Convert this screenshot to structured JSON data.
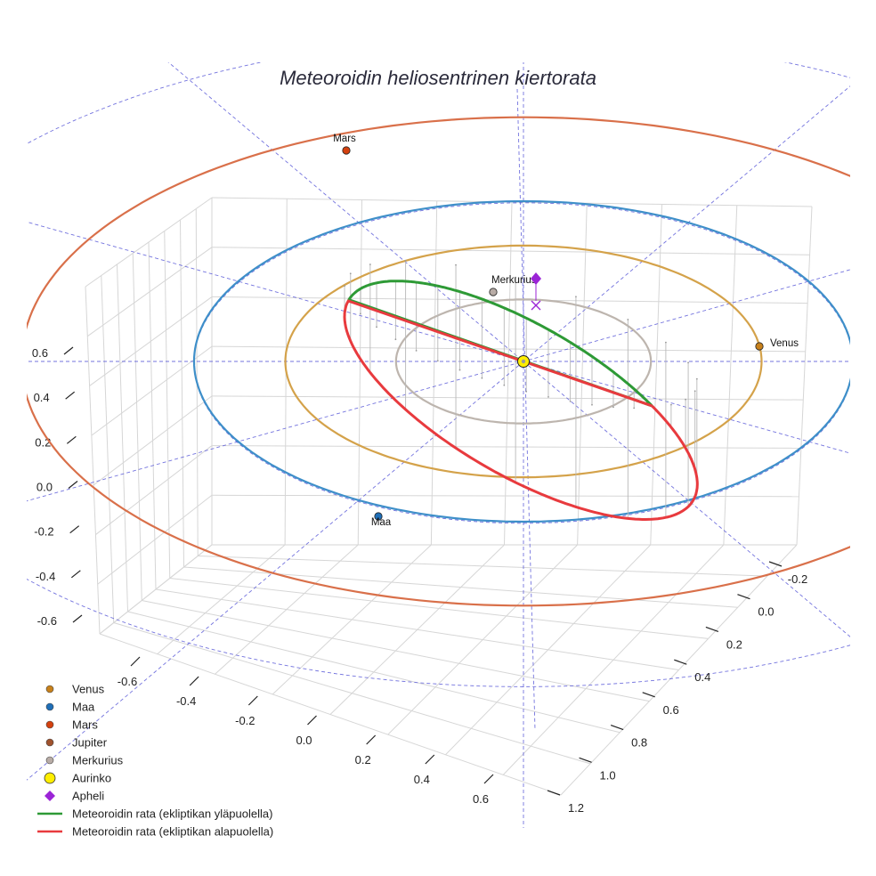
{
  "chart_data": {
    "type": "scatter",
    "projection": "3d",
    "title": "Meteoroidin heliosentrinen kiertorata",
    "axes": {
      "x": {
        "range": [
          -0.8,
          0.7
        ],
        "ticks": [
          "-0.6",
          "-0.4",
          "-0.2",
          "0.0",
          "0.2",
          "0.4",
          "0.6"
        ]
      },
      "y": {
        "range": [
          -0.3,
          1.3
        ],
        "ticks": [
          "-0.2",
          "0.0",
          "0.2",
          "0.4",
          "0.6",
          "0.8",
          "1.0",
          "1.2"
        ]
      },
      "z": {
        "range": [
          -0.7,
          0.7
        ],
        "ticks": [
          "-0.6",
          "-0.4",
          "-0.2",
          "0.0",
          "0.2",
          "0.4",
          "0.6"
        ]
      }
    },
    "grid": true,
    "legend": "bottom-left",
    "planet_orbits": [
      {
        "name": "Merkurius",
        "radius_au": 0.387,
        "color": "#bdb5ae"
      },
      {
        "name": "Venus",
        "radius_au": 0.723,
        "color": "#d4a24a"
      },
      {
        "name": "Maa",
        "radius_au": 1.0,
        "color": "#3e8fc9"
      },
      {
        "name": "Mars",
        "radius_au": 1.524,
        "color": "#d9704a"
      }
    ],
    "planets": [
      {
        "label": "Venus",
        "color": "#c8811b"
      },
      {
        "label": "Maa",
        "color": "#1f6fb8"
      },
      {
        "label": "Mars",
        "color": "#d4410f"
      },
      {
        "label": "Merkurius",
        "color": "#b8aca6"
      }
    ],
    "sun": {
      "label": "Aurinko",
      "color": "#ffee00"
    },
    "meteoroid_orbit": {
      "perihelion_au": 0.38,
      "aphelion_au": 1.06,
      "inclination_deg": 66,
      "above_color": "#2e9a36",
      "below_color": "#e83a3e"
    },
    "legend_items": [
      {
        "label": "Venus",
        "color": "#c8811b",
        "marker": "circle"
      },
      {
        "label": "Maa",
        "color": "#1f6fb8",
        "marker": "circle"
      },
      {
        "label": "Mars",
        "color": "#d4410f",
        "marker": "circle"
      },
      {
        "label": "Jupiter",
        "color": "#a0522d",
        "marker": "circle"
      },
      {
        "label": "Merkurius",
        "color": "#b8aca6",
        "marker": "circle"
      },
      {
        "label": "Aurinko",
        "color": "#ffee00",
        "marker": "big-circle"
      },
      {
        "label": "Apheli",
        "color": "#9b24d6",
        "marker": "diamond"
      },
      {
        "label": "Meteoroidin rata (ekliptikan yläpuolella)",
        "color": "#2e9a36",
        "marker": "line"
      },
      {
        "label": "Meteoroidin rata (ekliptikan alapuolella)",
        "color": "#e83a3e",
        "marker": "line"
      }
    ]
  }
}
